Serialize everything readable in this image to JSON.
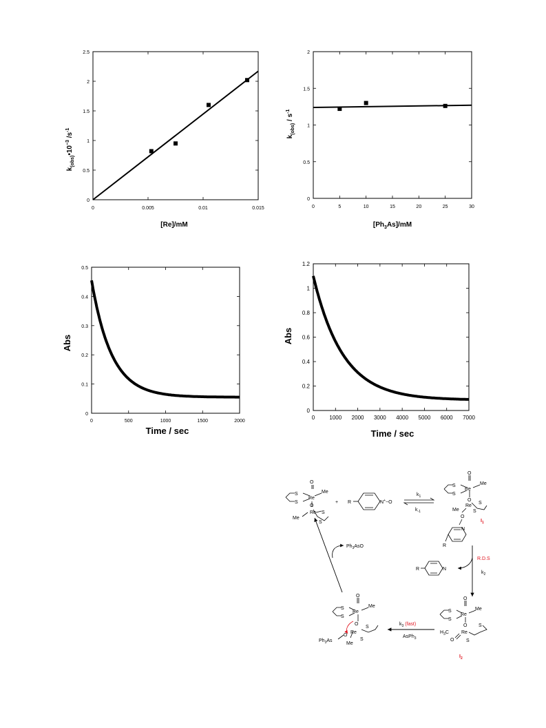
{
  "charts": [
    {
      "type": "scatter",
      "xlabel": "[Re]/mM",
      "ylabel_main": "k",
      "ylabel_sub": "(obs)",
      "ylabel_rest": "•10",
      "ylabel_sup": "−3",
      "ylabel_unit": "/s",
      "ylabel_unit_sup": "-1",
      "xlim": [
        0,
        0.015
      ],
      "ylim": [
        0,
        2.5
      ],
      "xticks": [
        {
          "v": 0,
          "t": "0"
        },
        {
          "v": 0.005,
          "t": "0.005"
        },
        {
          "v": 0.01,
          "t": "0.01"
        },
        {
          "v": 0.015,
          "t": "0.015"
        }
      ],
      "yticks": [
        {
          "v": 0,
          "t": "0"
        },
        {
          "v": 0.5,
          "t": "0.5"
        },
        {
          "v": 1,
          "t": "1"
        },
        {
          "v": 1.5,
          "t": "1.5"
        },
        {
          "v": 2,
          "t": "2"
        },
        {
          "v": 2.5,
          "t": "2.5"
        }
      ],
      "points": [
        [
          0.0053,
          0.82
        ],
        [
          0.0075,
          0.95
        ],
        [
          0.0105,
          1.6
        ],
        [
          0.014,
          2.02
        ]
      ],
      "fit": [
        [
          0,
          0
        ],
        [
          0.015,
          2.17
        ]
      ]
    },
    {
      "type": "scatter",
      "xlabel_pre": "[Ph",
      "xlabel_sub": "3",
      "xlabel_post": "As]/mM",
      "ylabel_main": "k",
      "ylabel_sub": "(obs)",
      "ylabel_unit": "/ s",
      "ylabel_unit_sup": "-1",
      "xlim": [
        0,
        30
      ],
      "ylim": [
        0,
        2
      ],
      "xticks": [
        {
          "v": 0,
          "t": "0"
        },
        {
          "v": 5,
          "t": "5"
        },
        {
          "v": 10,
          "t": "10"
        },
        {
          "v": 15,
          "t": "15"
        },
        {
          "v": 20,
          "t": "20"
        },
        {
          "v": 25,
          "t": "25"
        },
        {
          "v": 30,
          "t": "30"
        }
      ],
      "yticks": [
        {
          "v": 0,
          "t": "0"
        },
        {
          "v": 0.5,
          "t": "0.5"
        },
        {
          "v": 1,
          "t": "1"
        },
        {
          "v": 1.5,
          "t": "1.5"
        },
        {
          "v": 2,
          "t": "2"
        }
      ],
      "points": [
        [
          5,
          1.22
        ],
        [
          10,
          1.3
        ],
        [
          25,
          1.26
        ]
      ],
      "fit": [
        [
          0,
          1.24
        ],
        [
          30,
          1.27
        ]
      ]
    },
    {
      "type": "line",
      "xlabel": "Time / sec",
      "ylabel": "Abs",
      "xlim": [
        0,
        2000
      ],
      "ylim": [
        0,
        0.5
      ],
      "xticks": [
        {
          "v": 0,
          "t": "0"
        },
        {
          "v": 500,
          "t": "500"
        },
        {
          "v": 1000,
          "t": "1000"
        },
        {
          "v": 1500,
          "t": "1500"
        },
        {
          "v": 2000,
          "t": "2000"
        }
      ],
      "yticks": [
        {
          "v": 0,
          "t": "0"
        },
        {
          "v": 0.1,
          "t": "0.1"
        },
        {
          "v": 0.2,
          "t": "0.2"
        },
        {
          "v": 0.3,
          "t": "0.3"
        },
        {
          "v": 0.4,
          "t": "0.4"
        },
        {
          "v": 0.5,
          "t": "0.5"
        }
      ],
      "decay": {
        "a0": 0.455,
        "ainf": 0.055,
        "k": 0.0037
      }
    },
    {
      "type": "line",
      "xlabel": "Time / sec",
      "ylabel": "Abs",
      "xlim": [
        0,
        7000
      ],
      "ylim": [
        0,
        1.2
      ],
      "xticks": [
        {
          "v": 0,
          "t": "0"
        },
        {
          "v": 1000,
          "t": "1000"
        },
        {
          "v": 2000,
          "t": "2000"
        },
        {
          "v": 3000,
          "t": "3000"
        },
        {
          "v": 4000,
          "t": "4000"
        },
        {
          "v": 5000,
          "t": "5000"
        },
        {
          "v": 6000,
          "t": "6000"
        },
        {
          "v": 7000,
          "t": "7000"
        }
      ],
      "yticks": [
        {
          "v": 0,
          "t": "0"
        },
        {
          "v": 0.2,
          "t": "0.2"
        },
        {
          "v": 0.4,
          "t": "0.4"
        },
        {
          "v": 0.6,
          "t": "0.6"
        },
        {
          "v": 0.8,
          "t": "0.8"
        },
        {
          "v": 1,
          "t": "1"
        },
        {
          "v": 1.2,
          "t": "1.2"
        }
      ],
      "decay": {
        "a0": 1.1,
        "ainf": 0.085,
        "k": 0.00075
      }
    }
  ],
  "scheme": {
    "re": "Re",
    "me": "Me",
    "s": "S",
    "o": "O",
    "ominus": "O",
    "r": "R",
    "n": "N",
    "plus": "+",
    "nplus_o": "N",
    "nplus_sup": "+",
    "o_minus": "−O",
    "k1": "k",
    "k1_sub": "1",
    "km1": "k",
    "km1_sub": "-1",
    "k2": "k",
    "k2_sub": "2",
    "k3": "k",
    "k3_sub": "3",
    "fast": "(fast)",
    "asph3": "AsPh",
    "asph3_sub": "3",
    "ph3aso": "Ph",
    "ph3aso_sub": "3",
    "ph3aso_post": "AsO",
    "ph3as": "Ph",
    "ph3as_sub": "3",
    "ph3as_post": "As",
    "rds": "R.D.S",
    "i1": "I",
    "i1_sub": "1",
    "i2": "I",
    "i2_sub": "2",
    "h3c": "H",
    "h3c_sub": "3",
    "h3c_post": "C"
  }
}
